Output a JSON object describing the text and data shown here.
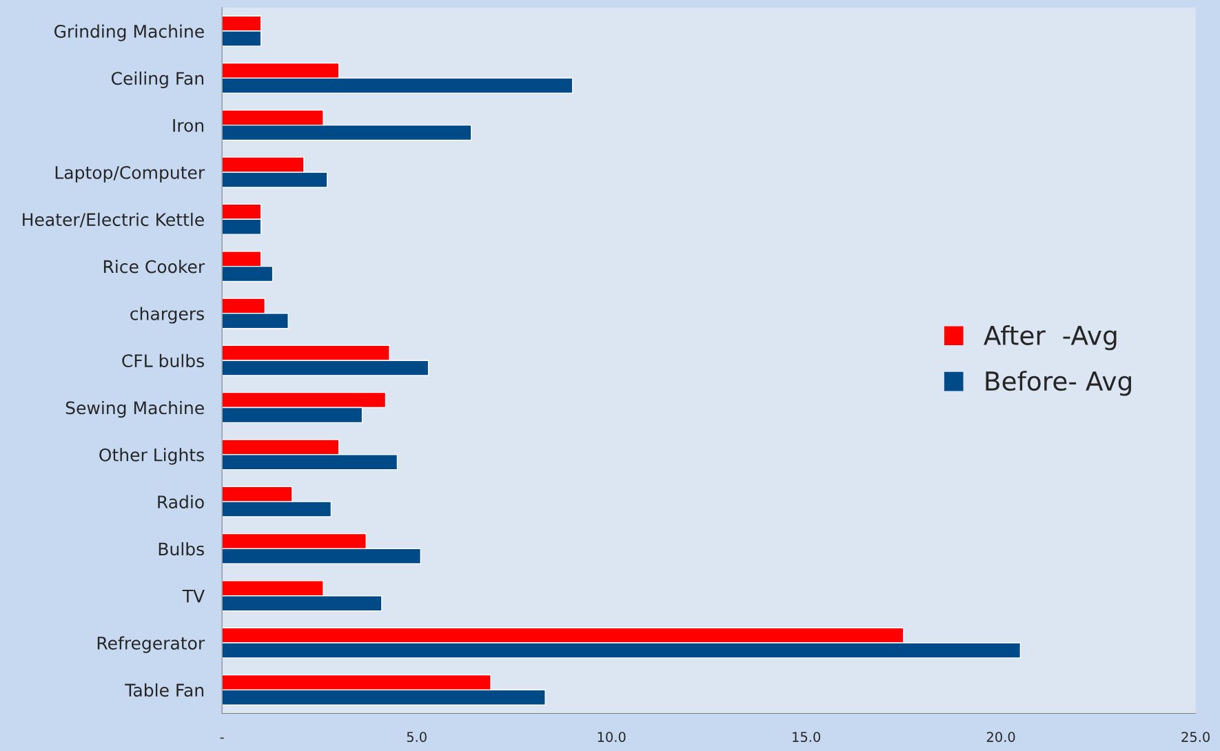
{
  "chart_data": {
    "type": "bar",
    "orientation": "horizontal",
    "categories": [
      "Grinding Machine",
      "Ceiling Fan",
      "Iron",
      "Laptop/Computer",
      "Heater/Electric Kettle",
      "Rice Cooker",
      "chargers",
      "CFL bulbs",
      "Sewing Machine",
      "Other Lights",
      "Radio",
      "Bulbs",
      "TV",
      "Refregerator",
      "Table Fan"
    ],
    "series": [
      {
        "name": "After  -Avg",
        "color": "#ff0000",
        "values": [
          1.0,
          3.0,
          2.6,
          2.1,
          1.0,
          1.0,
          1.1,
          4.3,
          4.2,
          3.0,
          1.8,
          3.7,
          2.6,
          17.5,
          6.9
        ]
      },
      {
        "name": "Before- Avg",
        "color": "#004b87",
        "values": [
          1.0,
          9.0,
          6.4,
          2.7,
          1.0,
          1.3,
          1.7,
          5.3,
          3.6,
          4.5,
          2.8,
          5.1,
          4.1,
          20.5,
          8.3
        ]
      }
    ],
    "xlim": [
      0,
      25
    ],
    "xticks": [
      {
        "value": 0,
        "label": "-"
      },
      {
        "value": 5,
        "label": "5.0"
      },
      {
        "value": 10,
        "label": "10.0"
      },
      {
        "value": 15,
        "label": "15.0"
      },
      {
        "value": 20,
        "label": "20.0"
      },
      {
        "value": 25,
        "label": "25.0"
      }
    ],
    "grid": false,
    "legend": "right"
  }
}
